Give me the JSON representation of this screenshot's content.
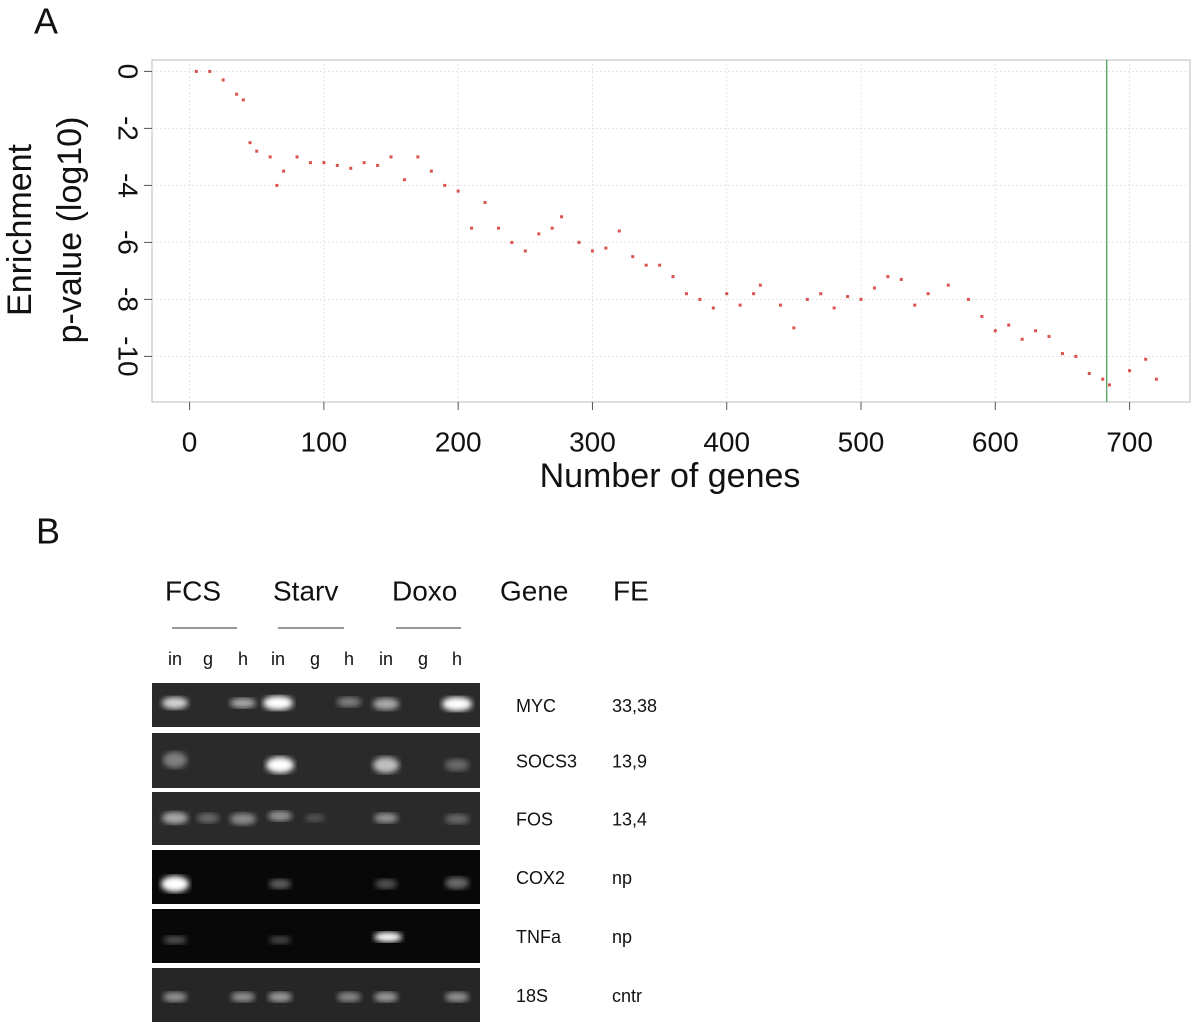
{
  "panels": [
    "A",
    "B"
  ],
  "chart_data": {
    "type": "scatter",
    "xlabel": "Number of genes",
    "ylabel": [
      "Enrichment",
      "p-value (log10)"
    ],
    "xlim": [
      -28,
      745
    ],
    "ylim": [
      -11.6,
      0.4
    ],
    "xticks": [
      0,
      100,
      200,
      300,
      400,
      500,
      600,
      700
    ],
    "yticks": [
      0,
      -2,
      -4,
      -6,
      -8,
      -10
    ],
    "grid": true,
    "vline": 683,
    "vline_color": "#3a9a4a",
    "series": [
      {
        "name": "enrichment",
        "color": "#d9534f",
        "x": [
          5,
          15,
          25,
          35,
          40,
          45,
          50,
          60,
          65,
          70,
          80,
          90,
          100,
          110,
          120,
          130,
          140,
          150,
          160,
          170,
          180,
          190,
          200,
          210,
          220,
          230,
          240,
          250,
          260,
          270,
          277,
          290,
          300,
          310,
          320,
          330,
          340,
          350,
          360,
          370,
          380,
          390,
          400,
          410,
          420,
          425,
          440,
          450,
          460,
          470,
          480,
          490,
          500,
          510,
          520,
          530,
          540,
          550,
          565,
          580,
          590,
          600,
          610,
          620,
          630,
          640,
          650,
          660,
          670,
          680,
          685,
          700,
          712,
          720
        ],
        "values": [
          0,
          0,
          -0.3,
          -0.8,
          -1,
          -2.5,
          -2.8,
          -3,
          -4,
          -3.5,
          -3,
          -3.2,
          -3.2,
          -3.3,
          -3.4,
          -3.2,
          -3.3,
          -3,
          -3.8,
          -3,
          -3.5,
          -4,
          -4.2,
          -5.5,
          -4.6,
          -5.5,
          -6,
          -6.3,
          -5.7,
          -5.5,
          -5.1,
          -6,
          -6.3,
          -6.2,
          -5.6,
          -6.5,
          -6.8,
          -6.8,
          -7.2,
          -7.8,
          -8,
          -8.3,
          -7.8,
          -8.2,
          -7.8,
          -7.5,
          -8.2,
          -9,
          -8,
          -7.8,
          -8.3,
          -7.9,
          -8,
          -7.6,
          -7.2,
          -7.3,
          -8.2,
          -7.8,
          -7.5,
          -8,
          -8.6,
          -9.1,
          -8.9,
          -9.4,
          -9.1,
          -9.3,
          -9.9,
          -10,
          -10.6,
          -10.8,
          -11,
          -10.5,
          -10.1,
          -10.8
        ]
      }
    ]
  },
  "gel": {
    "headers": [
      "FCS",
      "Starv",
      "Doxo",
      "Gene",
      "FE"
    ],
    "lanes": [
      "in",
      "g",
      "h",
      "in",
      "g",
      "h",
      "in",
      "g",
      "h"
    ],
    "rows": [
      {
        "gene": "MYC",
        "fe": "33,38"
      },
      {
        "gene": "SOCS3",
        "fe": "13,9"
      },
      {
        "gene": "FOS",
        "fe": "13,4"
      },
      {
        "gene": "COX2",
        "fe": "np"
      },
      {
        "gene": "TNFa",
        "fe": "np"
      },
      {
        "gene": "18S",
        "fe": "cntr"
      }
    ]
  }
}
